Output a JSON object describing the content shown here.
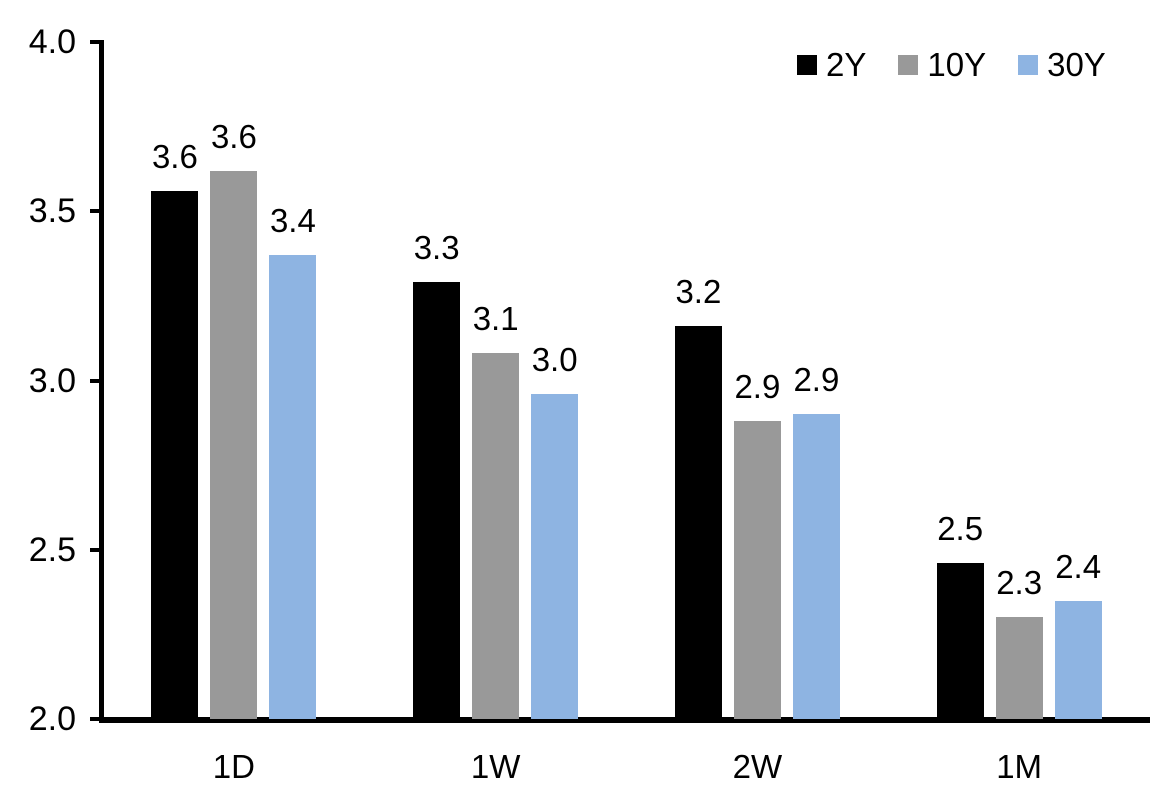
{
  "chart_data": {
    "type": "bar",
    "title": "",
    "xlabel": "",
    "ylabel": "",
    "categories": [
      "1D",
      "1W",
      "2W",
      "1M"
    ],
    "series": [
      {
        "name": "2Y",
        "color": "#000000",
        "values": [
          3.6,
          3.3,
          3.2,
          2.5
        ],
        "values_precise": [
          3.56,
          3.29,
          3.16,
          2.46
        ]
      },
      {
        "name": "10Y",
        "color": "#999999",
        "values": [
          3.6,
          3.1,
          2.9,
          2.3
        ],
        "values_precise": [
          3.62,
          3.08,
          2.88,
          2.3
        ]
      },
      {
        "name": "30Y",
        "color": "#8EB4E2",
        "values": [
          3.4,
          3.0,
          2.9,
          2.4
        ],
        "values_precise": [
          3.37,
          2.96,
          2.9,
          2.35
        ]
      }
    ],
    "ylim": [
      2.0,
      4.0
    ],
    "ytick_step": 0.5,
    "yticks": [
      "4.0",
      "3.5",
      "3.0",
      "2.5",
      "2.0"
    ],
    "grid": false,
    "data_labels": true,
    "data_label_decimals": 1,
    "legend_position": "top-right",
    "axis_color": "#000000",
    "background_color": "#FFFFFF"
  }
}
